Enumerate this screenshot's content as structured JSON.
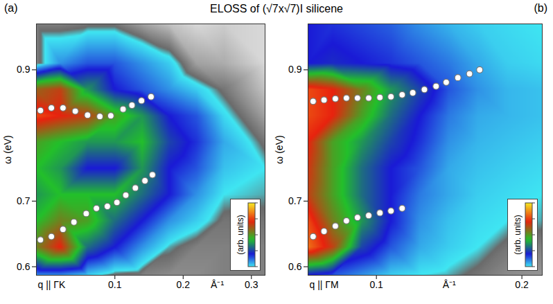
{
  "title": "ELOSS of (√7x√7)I silicene",
  "chart_data": [
    {
      "type": "heatmap",
      "panel": "(a)",
      "xlabel": "q || ΓK",
      "x_unit": "Å⁻¹",
      "ylabel": "ω (eV)",
      "xlim": [
        -0.015,
        0.32
      ],
      "xticks": [
        0.1,
        0.2,
        0.3
      ],
      "ylim": [
        0.587,
        0.97
      ],
      "yticks": [
        0.6,
        0.7,
        0.9
      ],
      "heatmap": {
        "x": [
          -0.015,
          0.02,
          0.06,
          0.1,
          0.14,
          0.18,
          0.22,
          0.26,
          0.32
        ],
        "y": [
          0.587,
          0.63,
          0.67,
          0.71,
          0.75,
          0.79,
          0.83,
          0.87,
          0.91,
          0.97
        ],
        "z": [
          [
            0.2,
            0.2,
            0.15,
            0.1,
            0.09,
            0.08,
            0.08,
            0.09,
            0.09
          ],
          [
            0.6,
            0.75,
            0.4,
            0.3,
            0.2,
            0.12,
            0.09,
            0.09,
            0.09
          ],
          [
            0.5,
            0.6,
            0.55,
            0.4,
            0.3,
            0.2,
            0.15,
            0.1,
            0.1
          ],
          [
            0.45,
            0.5,
            0.5,
            0.5,
            0.4,
            0.3,
            0.2,
            0.13,
            0.12
          ],
          [
            0.5,
            0.45,
            0.3,
            0.3,
            0.45,
            0.3,
            0.25,
            0.16,
            0.13
          ],
          [
            0.55,
            0.5,
            0.45,
            0.45,
            0.5,
            0.35,
            0.28,
            0.18,
            0.1
          ],
          [
            0.8,
            0.75,
            0.7,
            0.55,
            0.45,
            0.3,
            0.25,
            0.14,
            0.06
          ],
          [
            0.65,
            0.7,
            0.45,
            0.3,
            0.25,
            0.2,
            0.15,
            0.1,
            0.03
          ],
          [
            0.09,
            0.2,
            0.25,
            0.25,
            0.2,
            0.15,
            0.06,
            0.05,
            0.01
          ],
          [
            0.09,
            0.09,
            0.1,
            0.1,
            0.06,
            0.03,
            0.01,
            0.02,
            0.01
          ]
        ]
      },
      "colorbar": {
        "label": "(arb. units)",
        "range": [
          0.13,
          1
        ]
      },
      "color": "#ffffff",
      "marker": "circle",
      "series": [
        {
          "x": [
            -0.009,
            0.007,
            0.024,
            0.042,
            0.06,
            0.078,
            0.094,
            0.112,
            0.125,
            0.139,
            0.153
          ],
          "values": [
            0.838,
            0.842,
            0.842,
            0.837,
            0.831,
            0.829,
            0.83,
            0.84,
            0.846,
            0.853,
            0.859
          ]
        },
        {
          "x": [
            -0.009,
            0.007,
            0.024,
            0.04,
            0.058,
            0.073,
            0.089,
            0.103,
            0.116,
            0.13,
            0.144,
            0.155
          ],
          "values": [
            0.641,
            0.646,
            0.657,
            0.668,
            0.681,
            0.689,
            0.692,
            0.698,
            0.709,
            0.72,
            0.731,
            0.74
          ]
        }
      ]
    },
    {
      "type": "heatmap",
      "panel": "(b)",
      "xlabel": "q || ΓM",
      "x_unit": "Å⁻¹",
      "ylabel": "ω (eV)",
      "xlim": [
        0.053,
        0.214
      ],
      "xticks": [
        0.1,
        0.2
      ],
      "ylim": [
        0.587,
        0.97
      ],
      "yticks": [
        0.6,
        0.7,
        0.9
      ],
      "heatmap": {
        "x": [
          0.053,
          0.07,
          0.09,
          0.11,
          0.13,
          0.15,
          0.17,
          0.19,
          0.214
        ],
        "y": [
          0.587,
          0.63,
          0.67,
          0.71,
          0.75,
          0.79,
          0.83,
          0.87,
          0.91,
          0.97
        ],
        "z": [
          [
            0.3,
            0.25,
            0.2,
            0.15,
            0.13,
            0.12,
            0.1,
            0.08,
            0.07
          ],
          [
            0.85,
            0.7,
            0.35,
            0.25,
            0.18,
            0.15,
            0.13,
            0.1,
            0.09
          ],
          [
            0.8,
            0.6,
            0.45,
            0.3,
            0.2,
            0.16,
            0.14,
            0.13,
            0.12
          ],
          [
            0.7,
            0.55,
            0.4,
            0.3,
            0.22,
            0.18,
            0.15,
            0.14,
            0.13
          ],
          [
            0.72,
            0.55,
            0.4,
            0.3,
            0.25,
            0.18,
            0.16,
            0.15,
            0.14
          ],
          [
            0.75,
            0.55,
            0.45,
            0.35,
            0.28,
            0.2,
            0.17,
            0.16,
            0.15
          ],
          [
            0.8,
            0.75,
            0.55,
            0.4,
            0.3,
            0.22,
            0.18,
            0.17,
            0.16
          ],
          [
            0.8,
            0.75,
            0.6,
            0.45,
            0.35,
            0.25,
            0.2,
            0.17,
            0.16
          ],
          [
            0.3,
            0.32,
            0.3,
            0.28,
            0.25,
            0.22,
            0.18,
            0.15,
            0.14
          ],
          [
            0.3,
            0.28,
            0.26,
            0.24,
            0.2,
            0.17,
            0.15,
            0.14,
            0.13
          ]
        ]
      },
      "colorbar": {
        "label": "(arb. units)",
        "range": [
          0.13,
          1
        ]
      },
      "color": "#ffffff",
      "marker": "circle",
      "series": [
        {
          "x": [
            0.0565,
            0.064,
            0.0718,
            0.0794,
            0.087,
            0.0947,
            0.1024,
            0.11,
            0.1177,
            0.125,
            0.133,
            0.141,
            0.148,
            0.156,
            0.164,
            0.171
          ],
          "values": [
            0.852,
            0.854,
            0.856,
            0.857,
            0.857,
            0.857,
            0.858,
            0.859,
            0.862,
            0.865,
            0.87,
            0.875,
            0.881,
            0.888,
            0.894,
            0.9
          ]
        },
        {
          "x": [
            0.0565,
            0.064,
            0.0718,
            0.0794,
            0.087,
            0.0947,
            0.1024,
            0.11,
            0.1177
          ],
          "values": [
            0.646,
            0.654,
            0.662,
            0.67,
            0.675,
            0.678,
            0.682,
            0.685,
            0.689
          ]
        }
      ]
    }
  ]
}
